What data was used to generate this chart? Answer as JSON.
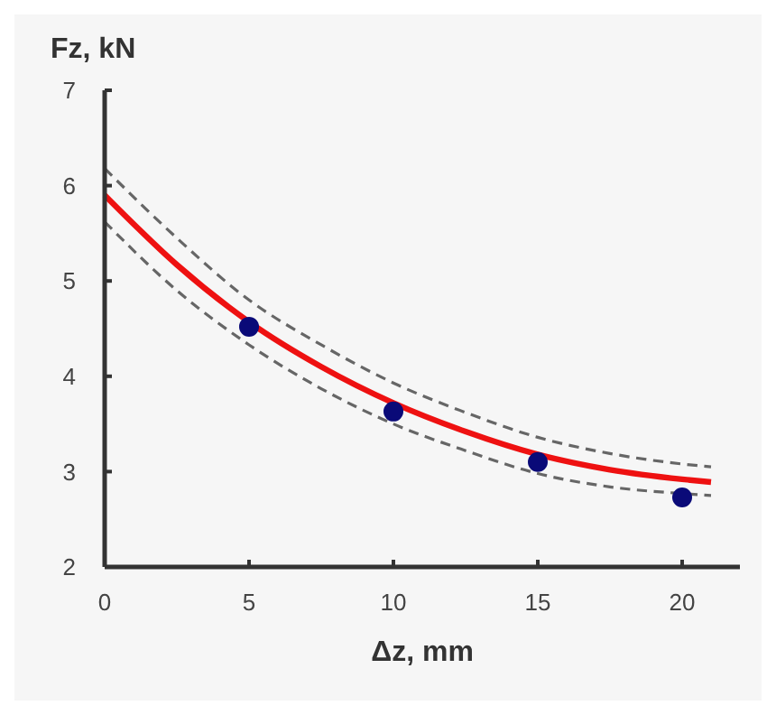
{
  "chart_data": {
    "type": "line",
    "xlabel": "Δz, mm",
    "ylabel": "Fz, kN",
    "xlim": [
      0,
      22
    ],
    "ylim": [
      2,
      7
    ],
    "xticks": [
      0,
      5,
      10,
      15,
      20
    ],
    "yticks": [
      2,
      3,
      4,
      5,
      6,
      7
    ],
    "grid": false,
    "series": [
      {
        "color": "#666666",
        "line_style": "dashed",
        "x": [
          0,
          2.5,
          5,
          7.5,
          10,
          12.5,
          15,
          17.5,
          20,
          21
        ],
        "values": [
          5.62,
          4.9,
          4.33,
          3.87,
          3.5,
          3.22,
          2.98,
          2.84,
          2.77,
          2.75
        ]
      },
      {
        "color": "#666666",
        "line_style": "dashed",
        "x": [
          0,
          2.5,
          5,
          7.5,
          10,
          12.5,
          15,
          17.5,
          20,
          21
        ],
        "values": [
          6.18,
          5.45,
          4.8,
          4.33,
          3.93,
          3.62,
          3.36,
          3.19,
          3.08,
          3.05
        ]
      },
      {
        "color": "#ee1111",
        "line_style": "solid",
        "x": [
          0,
          2.5,
          5,
          7.5,
          10,
          12.5,
          15,
          17.5,
          20,
          21
        ],
        "values": [
          5.9,
          5.17,
          4.57,
          4.1,
          3.72,
          3.42,
          3.18,
          3.02,
          2.92,
          2.89
        ]
      },
      {
        "type": "scatter",
        "color": "#0a0a78",
        "marker": "circle",
        "x": [
          5,
          10,
          15,
          20
        ],
        "values": [
          4.52,
          3.63,
          3.1,
          2.73
        ]
      }
    ]
  }
}
